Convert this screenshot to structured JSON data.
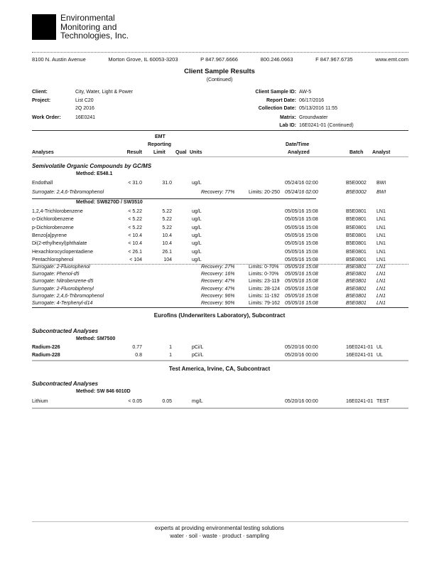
{
  "company": {
    "name_lines": [
      "Environmental",
      "Monitoring and",
      "Technologies, Inc."
    ]
  },
  "address": {
    "street": "8100 N. Austin Avenue",
    "city": "Morton Grove, IL 60053-3203",
    "phone": "P 847.967.6666",
    "tollfree": "800.246.0663",
    "fax": "F 847.967.6735",
    "web": "www.emt.com"
  },
  "report": {
    "title": "Client Sample Results",
    "subtitle": "(Continued)"
  },
  "info_left": [
    {
      "label": "Client:",
      "value": "City, Water, Light & Power"
    },
    {
      "label": "Project:",
      "value": "List C20"
    },
    {
      "label": "",
      "value": "2Q 2016"
    },
    {
      "label": "Work Order:",
      "value": "16E0241"
    }
  ],
  "info_right": [
    {
      "label": "Client Sample ID:",
      "value": "AW-5"
    },
    {
      "label": "Report Date:",
      "value": "06/17/2016"
    },
    {
      "label": "Collection Date:",
      "value": "05/13/2016  11:55"
    },
    {
      "label": "Matrix:",
      "value": "Groundwater"
    },
    {
      "label": "Lab ID:",
      "value": "16E0241-01 (Continued)"
    }
  ],
  "columns": {
    "analyses": "Analyses",
    "result": "Result",
    "rl1": "EMT",
    "rl2": "Reporting",
    "rl3": "Limit",
    "qual": "Qual",
    "units": "Units",
    "dt1": "Date/Time",
    "dt2": "Analyzed",
    "batch": "Batch",
    "analyst": "Analyst"
  },
  "sections": {
    "svoc": "Semivolatile Organic Compounds by GC/MS",
    "method1": "Method:  E548.1",
    "method2": "Method:  SW8270D / SW3510",
    "eurofins": "Eurofins (Underwriters Laboratory), Subcontract",
    "sub1": "Subcontracted Analyses",
    "method3": "Method:  SM7500",
    "testamerica": "Test America, Irvine, CA, Subcontract",
    "sub2": "Subcontracted Analyses",
    "method4": "Method:  SW 846 6010D"
  },
  "m1_rows": [
    {
      "analyte": "Endothall",
      "result": "< 31.0",
      "rl": "31.0",
      "qual": "",
      "units": "ug/L",
      "date": "05/24/16 02:00",
      "batch": "B5E0002",
      "analyst": "BWI"
    }
  ],
  "m1_surr": [
    {
      "analyte": "Surrogate: 2,4,6-Tribromophenol",
      "recovery": "Recovery: 77%",
      "limits": "Limits: 20-250",
      "date": "05/24/16 02:00",
      "batch": "B5E0002",
      "analyst": "BWI"
    }
  ],
  "m2_rows": [
    {
      "analyte": "1,2,4-Trichlorobenzene",
      "result": "< 5.22",
      "rl": "5.22",
      "qual": "",
      "units": "ug/L",
      "date": "05/05/16 15:08",
      "batch": "B5E0801",
      "analyst": "LN1"
    },
    {
      "analyte": "o-Dichlorobenzene",
      "result": "< 5.22",
      "rl": "5.22",
      "qual": "",
      "units": "ug/L",
      "date": "05/05/16 15:08",
      "batch": "B5E0801",
      "analyst": "LN1"
    },
    {
      "analyte": "p-Dichlorobenzene",
      "result": "< 5.22",
      "rl": "5.22",
      "qual": "",
      "units": "ug/L",
      "date": "05/05/16 15:08",
      "batch": "B5E0801",
      "analyst": "LN1"
    },
    {
      "analyte": "Benzo[a]pyrene",
      "result": "< 10.4",
      "rl": "10.4",
      "qual": "",
      "units": "ug/L",
      "date": "05/05/16 15:08",
      "batch": "B5E0801",
      "analyst": "LN1"
    },
    {
      "analyte": "Di(2-ethylhexyl)phthalate",
      "result": "< 10.4",
      "rl": "10.4",
      "qual": "",
      "units": "ug/L",
      "date": "05/05/16 15:08",
      "batch": "B5E0801",
      "analyst": "LN1"
    },
    {
      "analyte": "Hexachlorocyclopentadiene",
      "result": "< 26.1",
      "rl": "26.1",
      "qual": "",
      "units": "ug/L",
      "date": "05/05/16 15:08",
      "batch": "B5E0801",
      "analyst": "LN1"
    },
    {
      "analyte": "Pentachlorophenol",
      "result": "< 104",
      "rl": "104",
      "qual": "",
      "units": "ug/L",
      "date": "05/05/16 15:08",
      "batch": "B5E0801",
      "analyst": "LN1"
    }
  ],
  "m2_surr": [
    {
      "analyte": "Surrogate: 2-Fluorophenol",
      "recovery": "Recovery: 27%",
      "limits": "Limits: 0-70%",
      "date": "05/05/16 15:08",
      "batch": "B5E0801",
      "analyst": "LN1"
    },
    {
      "analyte": "Surrogate: Phenol-d5",
      "recovery": "Recovery: 16%",
      "limits": "Limits: 0-70%",
      "date": "05/05/16 15:08",
      "batch": "B5E0801",
      "analyst": "LN1"
    },
    {
      "analyte": "Surrogate: Nitrobenzene-d5",
      "recovery": "Recovery: 47%",
      "limits": "Limits: 23-119",
      "date": "05/05/16 15:08",
      "batch": "B5E0801",
      "analyst": "LN1"
    },
    {
      "analyte": "Surrogate: 2-Fluorobiphenyl",
      "recovery": "Recovery: 47%",
      "limits": "Limits: 28-124",
      "date": "05/05/16 15:08",
      "batch": "B5E0801",
      "analyst": "LN1"
    },
    {
      "analyte": "Surrogate: 2,4,6-Tribromophenol",
      "recovery": "Recovery: 96%",
      "limits": "Limits: 11-192",
      "date": "05/05/16 15:08",
      "batch": "B5E0801",
      "analyst": "LN1"
    },
    {
      "analyte": "Surrogate: 4-Terphenyl-d14",
      "recovery": "Recovery: 90%",
      "limits": "Limits: 79-162",
      "date": "05/05/16 15:08",
      "batch": "B5E0801",
      "analyst": "LN1"
    }
  ],
  "m3_rows": [
    {
      "analyte": "Radium-226",
      "result": "0.77",
      "rl": "1",
      "qual": "",
      "units": "pCi/L",
      "date": "05/20/16 00:00",
      "batch": "16E0241-01",
      "analyst": "UL"
    },
    {
      "analyte": "Radium-228",
      "result": "0.8",
      "rl": "1",
      "qual": "",
      "units": "pCi/L",
      "date": "05/20/16 00:00",
      "batch": "16E0241-01",
      "analyst": "UL"
    }
  ],
  "m4_rows": [
    {
      "analyte": "Lithium",
      "result": "< 0.05",
      "rl": "0.05",
      "qual": "",
      "units": "mg/L",
      "date": "05/20/16 00:00",
      "batch": "16E0241-01",
      "analyst": "TEST"
    }
  ],
  "footer": {
    "tagline": "experts at providing environmental testing solutions",
    "services": "water  ·  soil  ·  waste  ·  product  ·  sampling"
  }
}
